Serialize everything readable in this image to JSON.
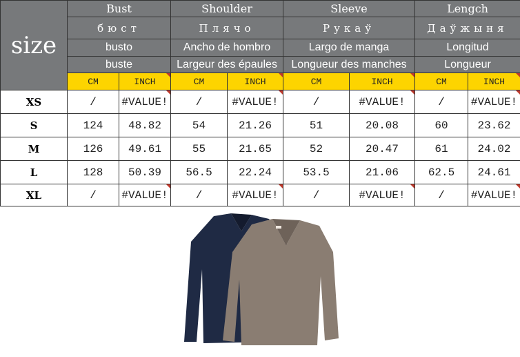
{
  "header": {
    "size_label": "size",
    "measures": [
      {
        "en": "Bust",
        "ru": "бюст",
        "es": "busto",
        "fr": "buste"
      },
      {
        "en": "Shoulder",
        "ru": "Плячо",
        "es": "Ancho de hombro",
        "fr": "Largeur des épaules"
      },
      {
        "en": "Sleeve",
        "ru": "Рукаў",
        "es": "Largo de manga",
        "fr": "Longueur des manches"
      },
      {
        "en": "Lengch",
        "ru": "Даўжыня",
        "es": "Longitud",
        "fr": "Longueur"
      }
    ],
    "units": [
      "CM",
      "INCH",
      "CM",
      "INCH",
      "CM",
      "INCH",
      "CM",
      "INCH"
    ]
  },
  "rows": [
    {
      "size": "XS",
      "values": [
        "/",
        "#VALUE!",
        "/",
        "#VALUE!",
        "/",
        "#VALUE!",
        "/",
        "#VALUE!"
      ]
    },
    {
      "size": "S",
      "values": [
        "124",
        "48.82",
        "54",
        "21.26",
        "51",
        "20.08",
        "60",
        "23.62"
      ]
    },
    {
      "size": "M",
      "values": [
        "126",
        "49.61",
        "55",
        "21.65",
        "52",
        "20.47",
        "61",
        "24.02"
      ]
    },
    {
      "size": "L",
      "values": [
        "128",
        "50.39",
        "56.5",
        "22.24",
        "53.5",
        "21.06",
        "62.5",
        "24.61"
      ]
    },
    {
      "size": "XL",
      "values": [
        "/",
        "#VALUE!",
        "/",
        "#VALUE!",
        "/",
        "#VALUE!",
        "/",
        "#VALUE!"
      ]
    }
  ],
  "colors": {
    "header_bg": "#77797b",
    "unit_bg": "#fdd400",
    "navy_sweater": "#1f2a44",
    "taupe_sweater": "#8a7d72"
  }
}
